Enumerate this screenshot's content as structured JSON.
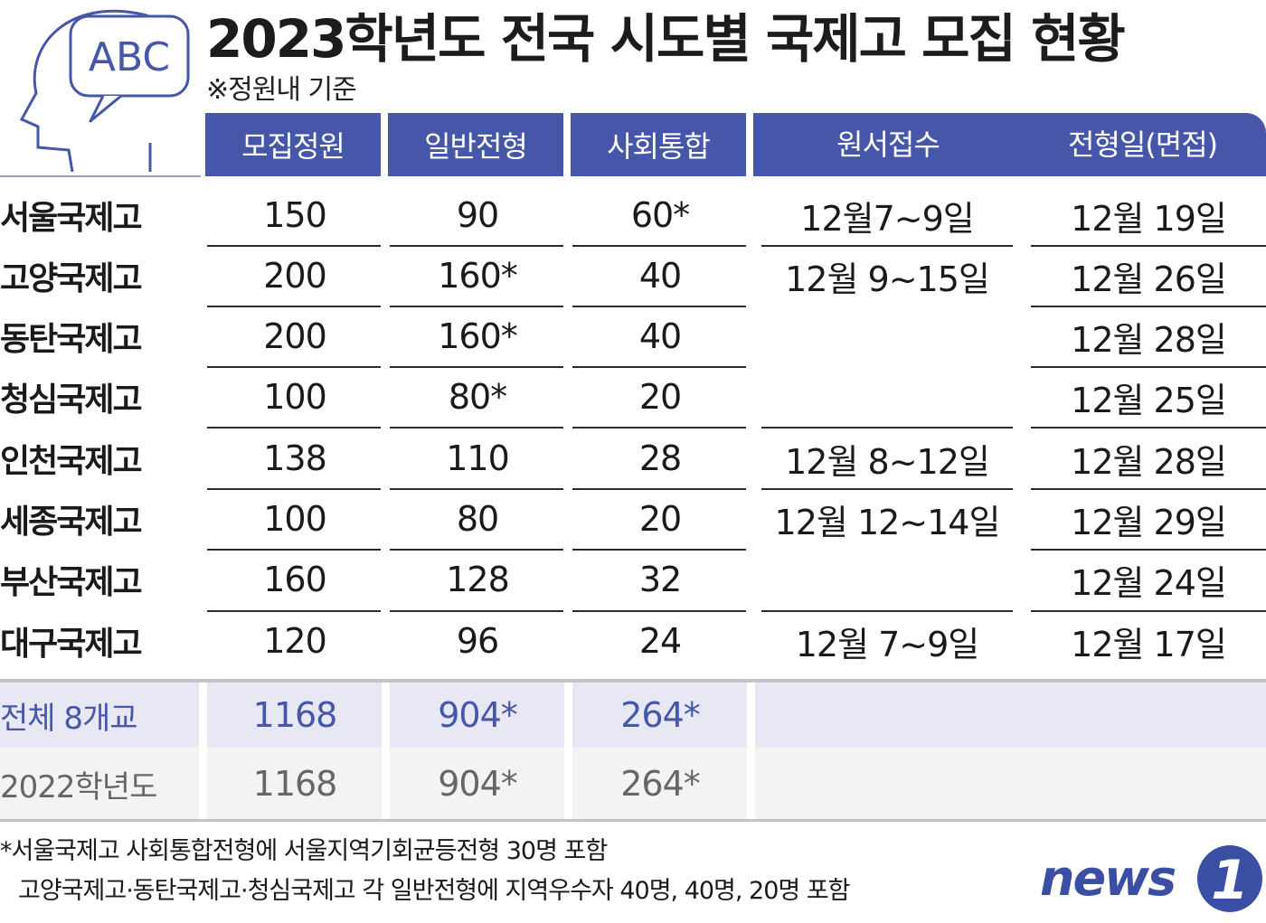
{
  "title": "2023학년도 전국 시도별 국제고 모집 현황",
  "subtitle": "※정원내 기준",
  "icon_text": "ABC",
  "headers": [
    "모집정원",
    "일반전형",
    "사회통합",
    "원서접수",
    "전형일(면접)"
  ],
  "rows": [
    {
      "school": "서울국제고",
      "quota": "150",
      "general": "90",
      "social": "60*",
      "interview": "12월 19일"
    },
    {
      "school": "고양국제고",
      "quota": "200",
      "general": "160*",
      "social": "40",
      "interview": "12월 26일"
    },
    {
      "school": "동탄국제고",
      "quota": "200",
      "general": "160*",
      "social": "40",
      "interview": "12월 28일"
    },
    {
      "school": "청심국제고",
      "quota": "100",
      "general": "80*",
      "social": "20",
      "interview": "12월 25일"
    },
    {
      "school": "인천국제고",
      "quota": "138",
      "general": "110",
      "social": "28",
      "interview": "12월 28일"
    },
    {
      "school": "세종국제고",
      "quota": "100",
      "general": "80",
      "social": "20",
      "interview": "12월 29일"
    },
    {
      "school": "부산국제고",
      "quota": "160",
      "general": "128",
      "social": "32",
      "interview": "12월 24일"
    },
    {
      "school": "대구국제고",
      "quota": "120",
      "general": "96",
      "social": "24",
      "interview": "12월 17일"
    }
  ],
  "application_periods": [
    "12월7~9일",
    "12월 9~15일",
    "12월 8~12일",
    "12월 12~14일",
    "12월 7~9일"
  ],
  "summary": {
    "label": "전체 8개교",
    "quota": "1168",
    "general": "904*",
    "social": "264*"
  },
  "previous": {
    "label": "2022학년도",
    "quota": "1168",
    "general": "904*",
    "social": "264*"
  },
  "notes": [
    "*서울국제고 사회통합전형에 서울지역기회균등전형 30명 포함",
    "고양국제고·동탄국제고·청심국제고 각 일반전형에 지역우수자 40명, 40명, 20명 포함"
  ],
  "logo_text": "news",
  "logo_mark": "1",
  "colors": {
    "header": "#4656a8",
    "summary_band": "#e7e8f4",
    "previous_band": "#f2f3f2",
    "logo": "#3a4fa3",
    "icon_stroke": "#4656a8"
  }
}
